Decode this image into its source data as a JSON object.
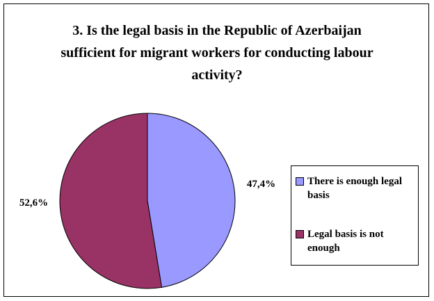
{
  "chart_data": {
    "type": "pie",
    "title": "3. Is the legal basis in the Republic of Azerbaijan sufficient for migrant workers for conducting labour activity?",
    "categories": [
      "There is enough legal basis",
      "Legal basis is not enough"
    ],
    "values": [
      47.4,
      52.6
    ],
    "value_labels": [
      "47,4%",
      "52,6%"
    ],
    "colors": [
      "#9999ff",
      "#993366"
    ],
    "legend": "right"
  }
}
